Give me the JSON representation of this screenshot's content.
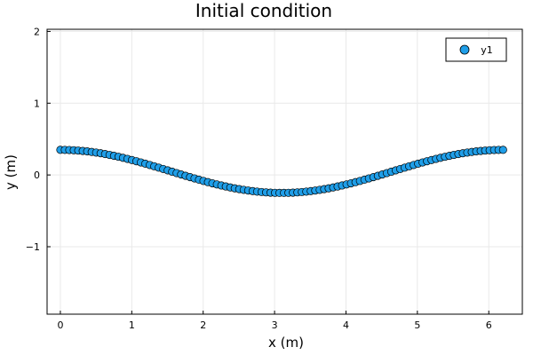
{
  "chart_data": {
    "type": "scatter",
    "title": "Initial condition",
    "xlabel": "x (m)",
    "ylabel": "y (m)",
    "xlim": [
      -0.186,
      6.47
    ],
    "ylim": [
      -1.94,
      2.03
    ],
    "xticks": [
      0,
      1,
      2,
      3,
      4,
      5,
      6
    ],
    "yticks": [
      -1,
      0,
      1,
      2
    ],
    "xtick_labels": [
      "0",
      "1",
      "2",
      "3",
      "4",
      "5",
      "6"
    ],
    "ytick_labels": [
      "−1",
      "0",
      "1",
      "2"
    ],
    "grid": true,
    "legend_position": "top-right",
    "series": [
      {
        "name": "y1",
        "color": "#1f9ee8",
        "marker": "circle",
        "n_points": 100,
        "x_range": [
          0,
          6.2
        ],
        "mean": 0.05,
        "amplitude": 0.3,
        "description_formula": "y = 0.05 + 0.3 cos(2*pi*x/6.2)"
      }
    ]
  }
}
